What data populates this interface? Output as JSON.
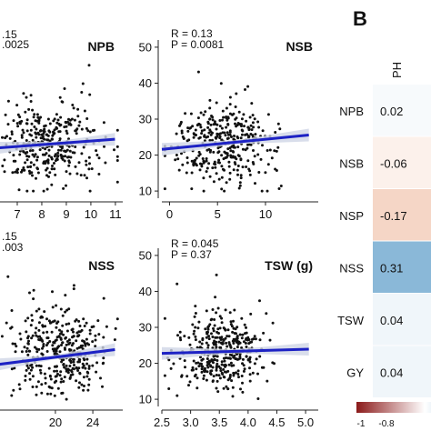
{
  "panel_b": {
    "label": "B",
    "column": "PH"
  },
  "colors": {
    "point": "#111111",
    "fit_line": "#1d22c4",
    "ci_band": "#cfd6e6",
    "low": "#8b1a1a",
    "mid": "#ffffff",
    "high": "#5b9bc8"
  },
  "chart_data": [
    {
      "type": "scatter",
      "name": "NPB",
      "stats_lines": [
        ".15",
        ".0025"
      ],
      "x_ticks": [
        "",
        "7",
        "8",
        "9",
        "10",
        "11"
      ],
      "xlim": [
        6,
        11.3
      ],
      "ylim": [
        8,
        52
      ],
      "fit": {
        "slope": 0.5,
        "intercept": 18.9
      },
      "points_summary": {
        "x_center": 8.2,
        "x_sd": 1.1,
        "y_center": 23,
        "y_sd": 5.5,
        "n": 360,
        "seed": 11
      }
    },
    {
      "type": "scatter",
      "name": "NSB",
      "stats_lines": [
        "R = 0.13",
        "P = 0.0081"
      ],
      "x_ticks": [
        "0",
        "5",
        "10"
      ],
      "y_ticks": [
        "10",
        "20",
        "30",
        "40",
        "50"
      ],
      "xlim": [
        -0.8,
        15.5
      ],
      "ylim": [
        8,
        52
      ],
      "fit": {
        "slope": 0.26,
        "intercept": 21.8
      },
      "points_summary": {
        "x_center": 5.5,
        "x_sd": 2.4,
        "y_center": 23,
        "y_sd": 5.5,
        "n": 360,
        "seed": 23
      }
    },
    {
      "type": "scatter",
      "name": "NSS",
      "stats_lines": [
        ".15",
        ".003"
      ],
      "x_ticks": [
        "",
        "20",
        "24"
      ],
      "xlim": [
        13.3,
        27.2
      ],
      "ylim": [
        8,
        52
      ],
      "fit": {
        "slope": 0.33,
        "intercept": 15.1
      },
      "points_summary": {
        "x_center": 20.5,
        "x_sd": 2.6,
        "y_center": 23,
        "y_sd": 5.5,
        "n": 380,
        "seed": 37
      }
    },
    {
      "type": "scatter",
      "name": "TSW (g)",
      "stats_lines": [
        "R = 0.045",
        "P = 0.37"
      ],
      "x_ticks": [
        "2.5",
        "3.0",
        "3.5",
        "4.0",
        "4.5",
        "5.0"
      ],
      "y_ticks": [
        "10",
        "20",
        "30",
        "40",
        "50"
      ],
      "xlim": [
        2.5,
        5.22
      ],
      "ylim": [
        8,
        52
      ],
      "fit": {
        "slope": 0.46,
        "intercept": 21.6
      },
      "points_summary": {
        "x_center": 3.5,
        "x_sd": 0.38,
        "y_center": 23,
        "y_sd": 5.5,
        "n": 380,
        "seed": 53
      }
    },
    {
      "type": "heatmap",
      "name": "PH",
      "rows": [
        "NPB",
        "NSB",
        "NSP",
        "NSS",
        "TSW",
        "GY"
      ],
      "values": [
        0.02,
        -0.06,
        -0.17,
        0.31,
        0.04,
        0.04
      ],
      "value_labels": [
        "0.02",
        "-0.06",
        "-0.17",
        "0.31",
        "0.04",
        "0.04"
      ],
      "colorbar_ticks": [
        "-1",
        "-0.8"
      ],
      "range": [
        -1,
        1
      ]
    }
  ]
}
